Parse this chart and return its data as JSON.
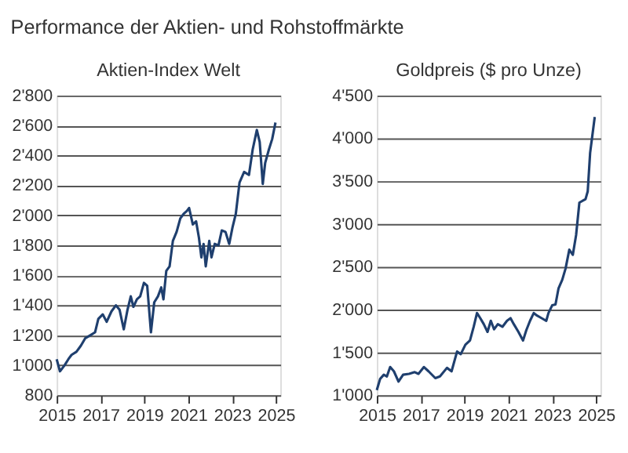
{
  "chart_data": [
    {
      "type": "line",
      "title": "Performance der Aktien- und Rohstoffmärkte",
      "subtitle": "Aktien-Index Welt",
      "x": [
        2015,
        2015.15,
        2015.36,
        2015.53,
        2015.68,
        2015.9,
        2016.1,
        2016.3,
        2016.53,
        2016.75,
        2016.9,
        2017.1,
        2017.28,
        2017.5,
        2017.7,
        2017.87,
        2018.06,
        2018.23,
        2018.38,
        2018.5,
        2018.66,
        2018.81,
        2018.98,
        2019.13,
        2019.3,
        2019.45,
        2019.62,
        2019.77,
        2019.87,
        2020.0,
        2020.15,
        2020.3,
        2020.47,
        2020.64,
        2020.79,
        2020.94,
        2021.04,
        2021.21,
        2021.36,
        2021.49,
        2021.6,
        2021.7,
        2021.8,
        2021.96,
        2022.06,
        2022.21,
        2022.38,
        2022.53,
        2022.7,
        2022.87,
        2023.02,
        2023.17,
        2023.34,
        2023.55,
        2023.77,
        2023.94,
        2024.13,
        2024.26,
        2024.4,
        2024.51,
        2024.68,
        2024.83,
        2024.98
      ],
      "series": [
        {
          "color": "#1f3f6e",
          "values": [
            1040,
            960,
            1000,
            1040,
            1070,
            1090,
            1130,
            1180,
            1200,
            1220,
            1310,
            1340,
            1290,
            1360,
            1400,
            1370,
            1240,
            1370,
            1460,
            1390,
            1440,
            1460,
            1550,
            1530,
            1220,
            1420,
            1460,
            1520,
            1440,
            1630,
            1660,
            1830,
            1890,
            1980,
            2010,
            2030,
            2050,
            1940,
            1960,
            1850,
            1720,
            1810,
            1660,
            1830,
            1720,
            1810,
            1800,
            1900,
            1890,
            1810,
            1920,
            2010,
            2220,
            2290,
            2270,
            2440,
            2570,
            2490,
            2210,
            2350,
            2440,
            2510,
            2620
          ]
        }
      ],
      "xlim": [
        2015,
        2025.2
      ],
      "xticks": [
        2015,
        2017,
        2019,
        2021,
        2023,
        2025
      ],
      "ylim": [
        800,
        2800
      ],
      "yticks": [
        800,
        {
          "value": 1000,
          "label": "1'000"
        },
        {
          "value": 1200,
          "label": "1'200"
        },
        {
          "value": 1400,
          "label": "1'400"
        },
        {
          "value": 1600,
          "label": "1'600"
        },
        {
          "value": 1800,
          "label": "1'800"
        },
        {
          "value": 2000,
          "label": "2'000"
        },
        {
          "value": 2200,
          "label": "2'200"
        },
        {
          "value": 2400,
          "label": "2'400"
        },
        {
          "value": 2600,
          "label": "2'600"
        },
        {
          "value": 2800,
          "label": "2'800"
        }
      ],
      "grid": "y",
      "marker": "none",
      "line_style": "solid"
    },
    {
      "type": "line",
      "subtitle": "Goldpreis ($ pro Unze)",
      "x": [
        2015,
        2015.15,
        2015.32,
        2015.46,
        2015.61,
        2015.78,
        2015.99,
        2016.2,
        2016.47,
        2016.73,
        2016.9,
        2017.15,
        2017.36,
        2017.67,
        2017.88,
        2018.2,
        2018.41,
        2018.66,
        2018.83,
        2019.04,
        2019.25,
        2019.42,
        2019.57,
        2019.72,
        2019.88,
        2020.05,
        2020.2,
        2020.35,
        2020.52,
        2020.73,
        2020.94,
        2021.1,
        2021.25,
        2021.46,
        2021.67,
        2021.82,
        2021.99,
        2022.16,
        2022.31,
        2022.52,
        2022.73,
        2022.83,
        2023.0,
        2023.15,
        2023.29,
        2023.46,
        2023.61,
        2023.78,
        2023.94,
        2024.09,
        2024.24,
        2024.52,
        2024.62,
        2024.73,
        2024.83,
        2024.94
      ],
      "series": [
        {
          "color": "#1f3f6e",
          "values": [
            1060,
            1190,
            1240,
            1220,
            1330,
            1280,
            1160,
            1240,
            1250,
            1270,
            1250,
            1330,
            1280,
            1200,
            1220,
            1320,
            1280,
            1510,
            1480,
            1590,
            1640,
            1800,
            1960,
            1900,
            1830,
            1740,
            1870,
            1770,
            1830,
            1800,
            1870,
            1900,
            1830,
            1740,
            1640,
            1760,
            1870,
            1960,
            1930,
            1900,
            1870,
            1960,
            2050,
            2060,
            2250,
            2350,
            2480,
            2700,
            2640,
            2870,
            3250,
            3290,
            3380,
            3830,
            4030,
            4250
          ]
        }
      ],
      "xlim": [
        2015,
        2025.2
      ],
      "xticks": [
        2015,
        2017,
        2019,
        2021,
        2023,
        2025
      ],
      "ylim": [
        1000,
        4500
      ],
      "yticks": [
        {
          "value": 1000,
          "label": "1'000"
        },
        {
          "value": 1500,
          "label": "1'500"
        },
        {
          "value": 2000,
          "label": "2'000"
        },
        {
          "value": 2500,
          "label": "2'500"
        },
        {
          "value": 3000,
          "label": "3'000"
        },
        {
          "value": 3500,
          "label": "3'500"
        },
        {
          "value": 4000,
          "label": "4'000"
        },
        {
          "value": 4500,
          "label": "4'500"
        }
      ],
      "grid": "y",
      "marker": "none",
      "line_style": "solid"
    }
  ]
}
